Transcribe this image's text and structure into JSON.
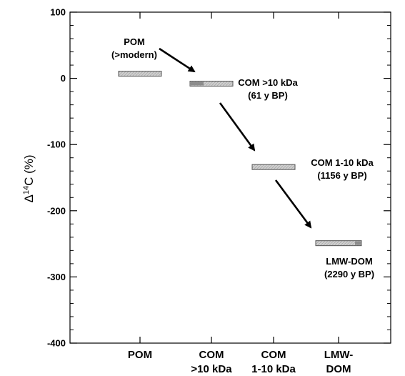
{
  "chart_data": {
    "type": "range-bar",
    "ylabel_prefix": "Δ",
    "ylabel_sup": "14",
    "ylabel_suffix": "C (%)",
    "ylim": [
      -400,
      100
    ],
    "yticks": [
      100,
      0,
      -100,
      -200,
      -300,
      -400
    ],
    "grid": false,
    "categories": [
      {
        "lines": [
          "POM"
        ]
      },
      {
        "lines": [
          "COM",
          ">10 kDa"
        ]
      },
      {
        "lines": [
          "COM",
          "1-10 kDa"
        ]
      },
      {
        "lines": [
          "LMW-",
          "DOM"
        ]
      }
    ],
    "values": [
      7,
      -8,
      -134,
      -249
    ],
    "annotations": [
      {
        "lines": [
          "POM",
          "(>modern)"
        ]
      },
      {
        "lines": [
          "COM >10 kDa",
          "(61 y BP)"
        ]
      },
      {
        "lines": [
          "COM 1-10 kDa",
          "(1156 y BP)"
        ]
      },
      {
        "lines": [
          "LMW-DOM",
          "(2290 y BP)"
        ]
      }
    ],
    "arrows": [
      {
        "from": [
          0.5,
          46
        ],
        "to": [
          1.3,
          -2
        ]
      },
      {
        "from": [
          1.6,
          -35
        ],
        "to": [
          2.1,
          -110
        ]
      },
      {
        "from": [
          2.5,
          -152
        ],
        "to": [
          3.0,
          -228
        ]
      }
    ],
    "colors": {
      "bar_fill": "#c8c8c8",
      "bar_dark": "#8c8c8c",
      "axis": "#000000"
    }
  }
}
